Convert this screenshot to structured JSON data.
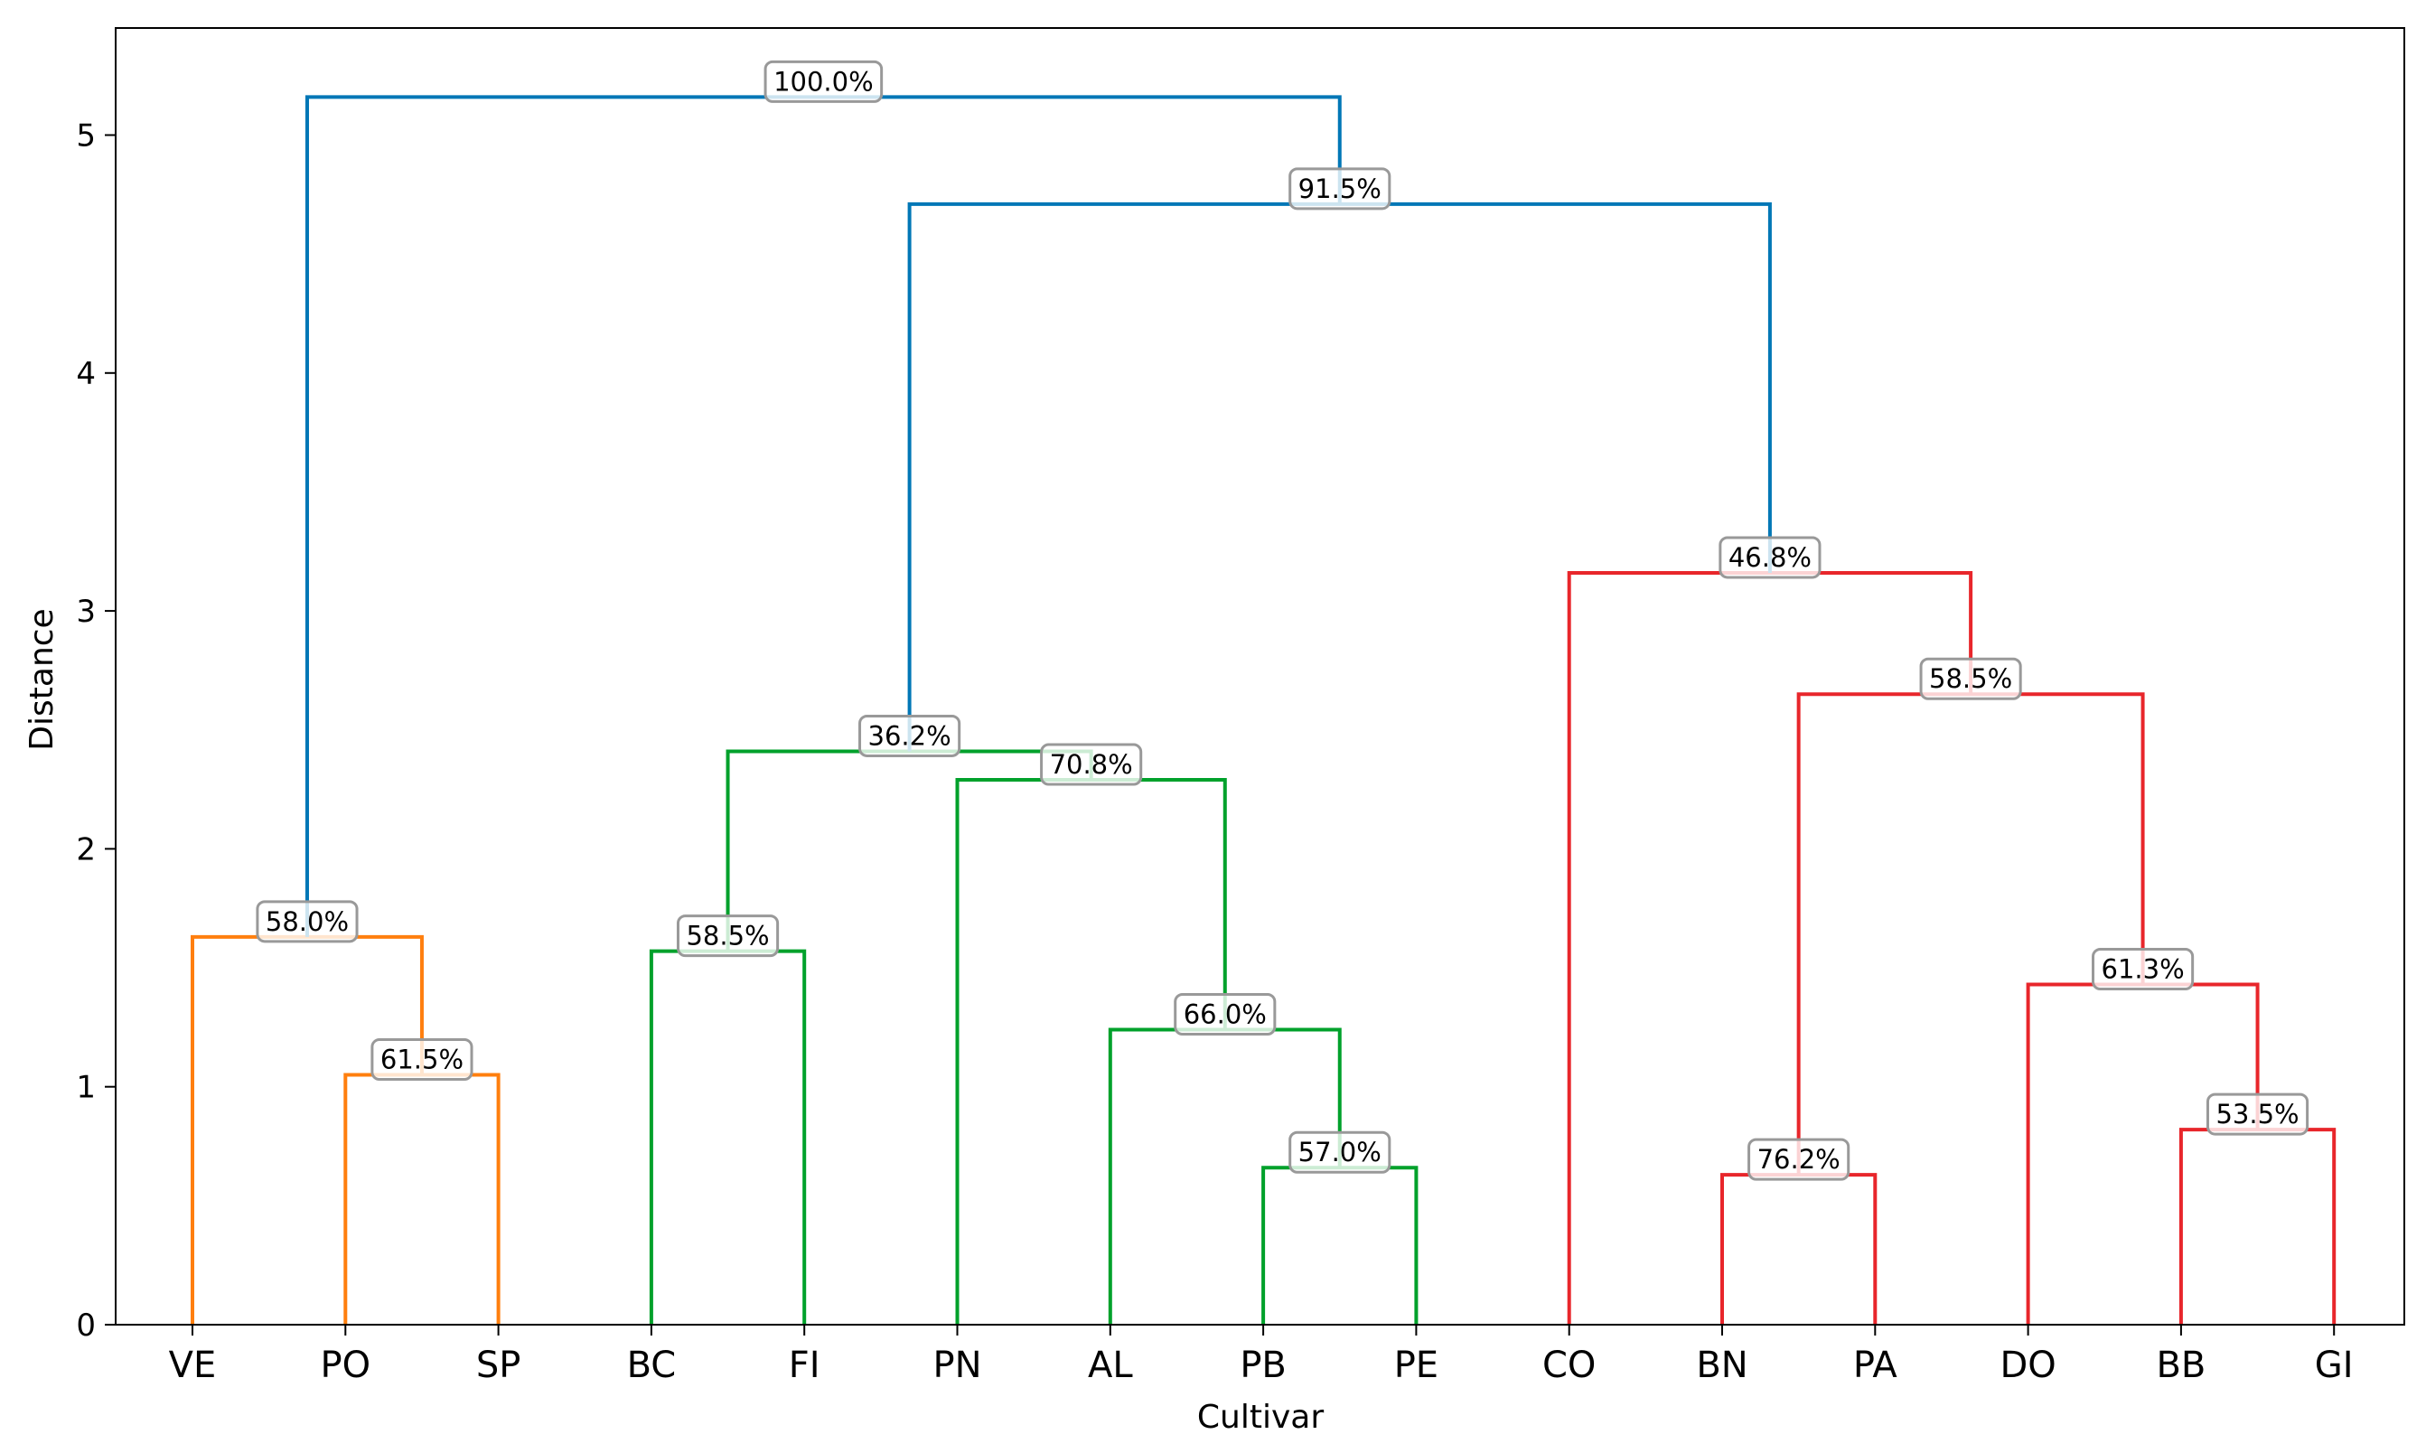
{
  "chart_data": {
    "type": "dendrogram",
    "title": "",
    "xlabel": "Cultivar",
    "ylabel": "Distance",
    "ylim": [
      0,
      5.45
    ],
    "yticks": [
      0,
      1,
      2,
      3,
      4,
      5
    ],
    "leaves": [
      "VE",
      "PO",
      "SP",
      "BC",
      "FI",
      "PN",
      "AL",
      "PB",
      "PE",
      "CO",
      "BN",
      "PA",
      "DO",
      "BB",
      "GI"
    ],
    "colors": {
      "orange": "#ff7f0e",
      "green": "#00a12b",
      "red": "#e8262b",
      "blue": "#0077b6",
      "label_border": "#999999"
    },
    "merges": [
      {
        "id": "m1",
        "left": "PO",
        "right": "SP",
        "height": 1.05,
        "label": "61.5%",
        "color": "orange"
      },
      {
        "id": "m2",
        "left": "VE",
        "right": "m1",
        "height": 1.63,
        "label": "58.0%",
        "color": "orange"
      },
      {
        "id": "m3",
        "left": "BC",
        "right": "FI",
        "height": 1.57,
        "label": "58.5%",
        "color": "green"
      },
      {
        "id": "m4",
        "left": "PB",
        "right": "PE",
        "height": 0.66,
        "label": "57.0%",
        "color": "green"
      },
      {
        "id": "m5",
        "left": "AL",
        "right": "m4",
        "height": 1.24,
        "label": "66.0%",
        "color": "green"
      },
      {
        "id": "m6",
        "left": "PN",
        "right": "m5",
        "height": 2.29,
        "label": "70.8%",
        "color": "green"
      },
      {
        "id": "m7",
        "left": "m3",
        "right": "m6",
        "height": 2.41,
        "label": "36.2%",
        "color": "green"
      },
      {
        "id": "m8",
        "left": "BN",
        "right": "PA",
        "height": 0.63,
        "label": "76.2%",
        "color": "red"
      },
      {
        "id": "m9",
        "left": "BB",
        "right": "GI",
        "height": 0.82,
        "label": "53.5%",
        "color": "red"
      },
      {
        "id": "m10",
        "left": "DO",
        "right": "m9",
        "height": 1.43,
        "label": "61.3%",
        "color": "red"
      },
      {
        "id": "m11",
        "left": "m8",
        "right": "m10",
        "height": 2.65,
        "label": "58.5%",
        "color": "red"
      },
      {
        "id": "m12",
        "left": "CO",
        "right": "m11",
        "height": 3.16,
        "label": "46.8%",
        "color": "red"
      },
      {
        "id": "m13",
        "left": "m7",
        "right": "m12",
        "height": 4.71,
        "label": "91.5%",
        "color": "blue"
      },
      {
        "id": "m14",
        "left": "m2",
        "right": "m13",
        "height": 5.16,
        "label": "100.0%",
        "color": "blue"
      }
    ]
  }
}
